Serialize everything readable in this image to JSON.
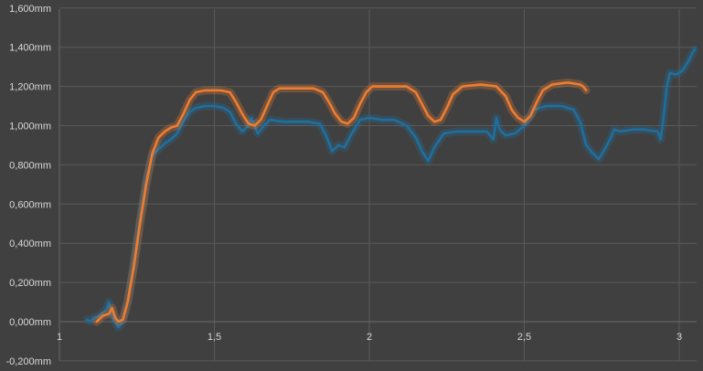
{
  "chart_data": {
    "type": "line",
    "title": "",
    "xlabel": "",
    "ylabel": "",
    "xlim": [
      1,
      3.05
    ],
    "ylim": [
      -0.2,
      1.6
    ],
    "grid": true,
    "legend": "none",
    "x_ticks": [
      {
        "value": 1,
        "label": "1"
      },
      {
        "value": 1.5,
        "label": "1,5"
      },
      {
        "value": 2,
        "label": "2"
      },
      {
        "value": 2.5,
        "label": "2,5"
      },
      {
        "value": 3,
        "label": "3"
      }
    ],
    "y_ticks": [
      {
        "value": 1.6,
        "label": "1,600mm"
      },
      {
        "value": 1.4,
        "label": "1,400mm"
      },
      {
        "value": 1.2,
        "label": "1,200mm"
      },
      {
        "value": 1.0,
        "label": "1,000mm"
      },
      {
        "value": 0.8,
        "label": "0,800mm"
      },
      {
        "value": 0.6,
        "label": "0,600mm"
      },
      {
        "value": 0.4,
        "label": "0,400mm"
      },
      {
        "value": 0.2,
        "label": "0,200mm"
      },
      {
        "value": 0.0,
        "label": "0,000mm"
      },
      {
        "value": -0.2,
        "label": "-0,200mm"
      }
    ],
    "series": [
      {
        "color": "#1f6f9e",
        "points": [
          [
            1.09,
            0.01
          ],
          [
            1.1,
            0.0
          ],
          [
            1.11,
            0.02
          ],
          [
            1.13,
            0.03
          ],
          [
            1.15,
            0.06
          ],
          [
            1.16,
            0.1
          ],
          [
            1.17,
            0.03
          ],
          [
            1.18,
            0.0
          ],
          [
            1.19,
            -0.03
          ],
          [
            1.2,
            -0.01
          ],
          [
            1.22,
            0.1
          ],
          [
            1.24,
            0.3
          ],
          [
            1.26,
            0.52
          ],
          [
            1.28,
            0.72
          ],
          [
            1.3,
            0.85
          ],
          [
            1.32,
            0.88
          ],
          [
            1.34,
            0.91
          ],
          [
            1.36,
            0.93
          ],
          [
            1.38,
            0.96
          ],
          [
            1.4,
            1.02
          ],
          [
            1.42,
            1.07
          ],
          [
            1.44,
            1.09
          ],
          [
            1.47,
            1.1
          ],
          [
            1.5,
            1.1
          ],
          [
            1.53,
            1.09
          ],
          [
            1.55,
            1.07
          ],
          [
            1.57,
            1.01
          ],
          [
            1.59,
            0.97
          ],
          [
            1.61,
            1.0
          ],
          [
            1.62,
            1.04
          ],
          [
            1.63,
            1.0
          ],
          [
            1.64,
            0.96
          ],
          [
            1.66,
            1.0
          ],
          [
            1.68,
            1.03
          ],
          [
            1.72,
            1.02
          ],
          [
            1.76,
            1.02
          ],
          [
            1.8,
            1.02
          ],
          [
            1.84,
            1.01
          ],
          [
            1.86,
            0.95
          ],
          [
            1.88,
            0.87
          ],
          [
            1.9,
            0.9
          ],
          [
            1.92,
            0.89
          ],
          [
            1.94,
            0.95
          ],
          [
            1.97,
            1.03
          ],
          [
            2.0,
            1.04
          ],
          [
            2.04,
            1.03
          ],
          [
            2.08,
            1.03
          ],
          [
            2.12,
            1.0
          ],
          [
            2.15,
            0.94
          ],
          [
            2.17,
            0.87
          ],
          [
            2.19,
            0.82
          ],
          [
            2.21,
            0.89
          ],
          [
            2.24,
            0.96
          ],
          [
            2.28,
            0.97
          ],
          [
            2.33,
            0.97
          ],
          [
            2.38,
            0.97
          ],
          [
            2.4,
            0.93
          ],
          [
            2.41,
            1.04
          ],
          [
            2.42,
            0.98
          ],
          [
            2.44,
            0.95
          ],
          [
            2.47,
            0.96
          ],
          [
            2.5,
            1.0
          ],
          [
            2.53,
            1.08
          ],
          [
            2.57,
            1.1
          ],
          [
            2.62,
            1.1
          ],
          [
            2.66,
            1.08
          ],
          [
            2.68,
            1.02
          ],
          [
            2.7,
            0.9
          ],
          [
            2.72,
            0.86
          ],
          [
            2.74,
            0.83
          ],
          [
            2.76,
            0.88
          ],
          [
            2.78,
            0.94
          ],
          [
            2.79,
            0.98
          ],
          [
            2.81,
            0.97
          ],
          [
            2.85,
            0.98
          ],
          [
            2.89,
            0.98
          ],
          [
            2.93,
            0.97
          ],
          [
            2.94,
            0.93
          ],
          [
            2.95,
            1.05
          ],
          [
            2.96,
            1.2
          ],
          [
            2.97,
            1.27
          ],
          [
            2.99,
            1.26
          ],
          [
            3.01,
            1.28
          ],
          [
            3.03,
            1.33
          ],
          [
            3.05,
            1.39
          ]
        ]
      },
      {
        "color": "#ed7d31",
        "points": [
          [
            1.12,
            0.0
          ],
          [
            1.14,
            0.03
          ],
          [
            1.16,
            0.04
          ],
          [
            1.17,
            0.07
          ],
          [
            1.18,
            0.02
          ],
          [
            1.19,
            0.0
          ],
          [
            1.205,
            0.01
          ],
          [
            1.22,
            0.1
          ],
          [
            1.24,
            0.28
          ],
          [
            1.26,
            0.5
          ],
          [
            1.28,
            0.7
          ],
          [
            1.3,
            0.86
          ],
          [
            1.32,
            0.94
          ],
          [
            1.34,
            0.97
          ],
          [
            1.36,
            0.99
          ],
          [
            1.38,
            1.0
          ],
          [
            1.4,
            1.06
          ],
          [
            1.42,
            1.13
          ],
          [
            1.44,
            1.17
          ],
          [
            1.47,
            1.18
          ],
          [
            1.52,
            1.18
          ],
          [
            1.55,
            1.17
          ],
          [
            1.57,
            1.12
          ],
          [
            1.59,
            1.06
          ],
          [
            1.61,
            1.01
          ],
          [
            1.63,
            1.0
          ],
          [
            1.65,
            1.03
          ],
          [
            1.67,
            1.1
          ],
          [
            1.69,
            1.17
          ],
          [
            1.71,
            1.19
          ],
          [
            1.76,
            1.19
          ],
          [
            1.82,
            1.19
          ],
          [
            1.85,
            1.17
          ],
          [
            1.87,
            1.12
          ],
          [
            1.89,
            1.06
          ],
          [
            1.91,
            1.02
          ],
          [
            1.93,
            1.01
          ],
          [
            1.95,
            1.04
          ],
          [
            1.97,
            1.11
          ],
          [
            1.99,
            1.17
          ],
          [
            2.01,
            1.2
          ],
          [
            2.06,
            1.2
          ],
          [
            2.12,
            1.2
          ],
          [
            2.15,
            1.17
          ],
          [
            2.17,
            1.11
          ],
          [
            2.19,
            1.05
          ],
          [
            2.21,
            1.02
          ],
          [
            2.23,
            1.03
          ],
          [
            2.25,
            1.09
          ],
          [
            2.27,
            1.16
          ],
          [
            2.3,
            1.2
          ],
          [
            2.36,
            1.21
          ],
          [
            2.41,
            1.2
          ],
          [
            2.44,
            1.15
          ],
          [
            2.46,
            1.08
          ],
          [
            2.48,
            1.04
          ],
          [
            2.5,
            1.02
          ],
          [
            2.52,
            1.05
          ],
          [
            2.54,
            1.12
          ],
          [
            2.56,
            1.18
          ],
          [
            2.59,
            1.21
          ],
          [
            2.64,
            1.22
          ],
          [
            2.68,
            1.21
          ],
          [
            2.69,
            1.2
          ],
          [
            2.7,
            1.18
          ]
        ]
      }
    ]
  }
}
